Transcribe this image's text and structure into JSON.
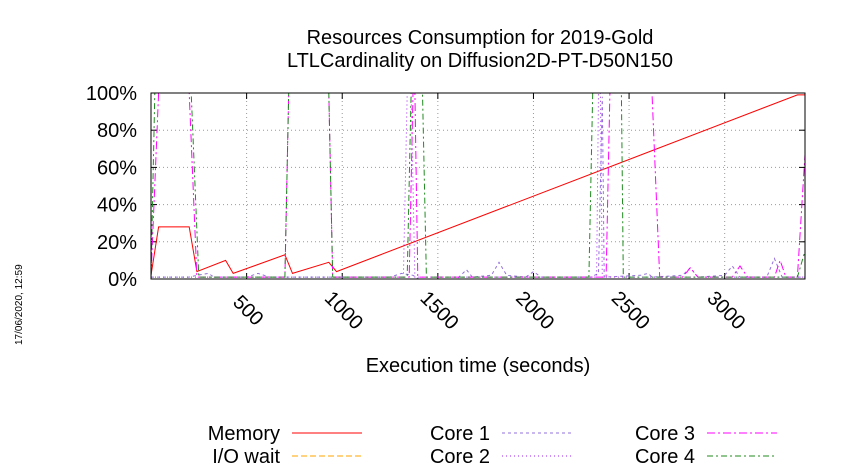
{
  "timestamp": "17/06/2020, 12:59",
  "chart_data": {
    "type": "line",
    "title": [
      "Resources Consumption for 2019-Gold",
      "LTLCardinality on Diffusion2D-PT-D50N150"
    ],
    "xlabel": "Execution time (seconds)",
    "ylabel": "",
    "xlim": [
      0,
      3420
    ],
    "ylim": [
      0,
      100
    ],
    "xticks": [
      500,
      1000,
      1500,
      2000,
      2500,
      3000
    ],
    "xtick_labels": [
      "500",
      "1000",
      "1500",
      "2000",
      "2500",
      "3000"
    ],
    "yticks": [
      0,
      20,
      40,
      60,
      80,
      100
    ],
    "ytick_labels": [
      "0%",
      "20%",
      "40%",
      "60%",
      "80%",
      "100%"
    ],
    "grid": true,
    "legend_position": "bottom",
    "series": [
      {
        "name": "Memory",
        "color": "#ff0000",
        "dash": "solid",
        "points": [
          [
            0,
            2
          ],
          [
            40,
            28
          ],
          [
            200,
            28
          ],
          [
            240,
            4
          ],
          [
            390,
            10
          ],
          [
            430,
            3
          ],
          [
            700,
            13
          ],
          [
            740,
            3
          ],
          [
            930,
            9
          ],
          [
            970,
            4
          ],
          [
            3380,
            99
          ],
          [
            3420,
            99
          ]
        ]
      },
      {
        "name": "I/O wait",
        "color": "#ffa500",
        "dash": "6,3",
        "points": [
          [
            0,
            0
          ],
          [
            3420,
            0
          ]
        ]
      },
      {
        "name": "Core 1",
        "color": "#9370db",
        "dash": "3,3",
        "points": [
          [
            0,
            1
          ],
          [
            200,
            1
          ],
          [
            240,
            2
          ],
          [
            300,
            3
          ],
          [
            330,
            1
          ],
          [
            500,
            1
          ],
          [
            560,
            3
          ],
          [
            620,
            1
          ],
          [
            1250,
            1
          ],
          [
            1310,
            3
          ],
          [
            1370,
            2
          ],
          [
            1400,
            0
          ],
          [
            1600,
            0
          ],
          [
            1650,
            5
          ],
          [
            1680,
            1
          ],
          [
            1780,
            2
          ],
          [
            1820,
            9
          ],
          [
            1860,
            2
          ],
          [
            1960,
            1
          ],
          [
            2000,
            4
          ],
          [
            2040,
            1
          ],
          [
            2300,
            1
          ],
          [
            2340,
            3
          ],
          [
            2360,
            98
          ],
          [
            2370,
            1
          ],
          [
            2560,
            2
          ],
          [
            2600,
            3
          ],
          [
            2620,
            1
          ],
          [
            2780,
            2
          ],
          [
            2820,
            6
          ],
          [
            2860,
            1
          ],
          [
            3000,
            2
          ],
          [
            3040,
            7
          ],
          [
            3080,
            1
          ],
          [
            3220,
            1
          ],
          [
            3260,
            11
          ],
          [
            3300,
            1
          ],
          [
            3420,
            1
          ]
        ]
      },
      {
        "name": "Core 2",
        "color": "#a020f0",
        "dash": "1,3",
        "points": [
          [
            0,
            1
          ],
          [
            500,
            1
          ],
          [
            1320,
            1
          ],
          [
            1340,
            100
          ],
          [
            1360,
            100
          ],
          [
            1380,
            1
          ],
          [
            2330,
            1
          ],
          [
            2340,
            100
          ],
          [
            2350,
            100
          ],
          [
            2360,
            1
          ],
          [
            3420,
            1
          ]
        ]
      },
      {
        "name": "Core 3",
        "color": "#ff00ff",
        "dash": "8,3,2,3",
        "points": [
          [
            0,
            1
          ],
          [
            40,
            100
          ],
          [
            200,
            100
          ],
          [
            240,
            1
          ],
          [
            700,
            1
          ],
          [
            720,
            100
          ],
          [
            930,
            100
          ],
          [
            950,
            1
          ],
          [
            1350,
            1
          ],
          [
            1370,
            100
          ],
          [
            1380,
            100
          ],
          [
            1395,
            1
          ],
          [
            2380,
            1
          ],
          [
            2400,
            100
          ],
          [
            2620,
            100
          ],
          [
            2660,
            1
          ],
          [
            2780,
            1
          ],
          [
            2820,
            6
          ],
          [
            2860,
            1
          ],
          [
            3040,
            1
          ],
          [
            3080,
            7
          ],
          [
            3120,
            1
          ],
          [
            3260,
            1
          ],
          [
            3290,
            10
          ],
          [
            3320,
            1
          ],
          [
            3380,
            1
          ],
          [
            3420,
            67
          ]
        ]
      },
      {
        "name": "Core 4",
        "color": "#228b22",
        "dash": "6,3,2,3",
        "points": [
          [
            0,
            1
          ],
          [
            20,
            100
          ],
          [
            210,
            100
          ],
          [
            250,
            1
          ],
          [
            700,
            1
          ],
          [
            720,
            100
          ],
          [
            930,
            100
          ],
          [
            950,
            1
          ],
          [
            1340,
            1
          ],
          [
            1360,
            100
          ],
          [
            1420,
            100
          ],
          [
            1440,
            1
          ],
          [
            2290,
            1
          ],
          [
            2310,
            100
          ],
          [
            2460,
            100
          ],
          [
            2470,
            1
          ],
          [
            3380,
            1
          ],
          [
            3420,
            15
          ]
        ]
      }
    ]
  }
}
